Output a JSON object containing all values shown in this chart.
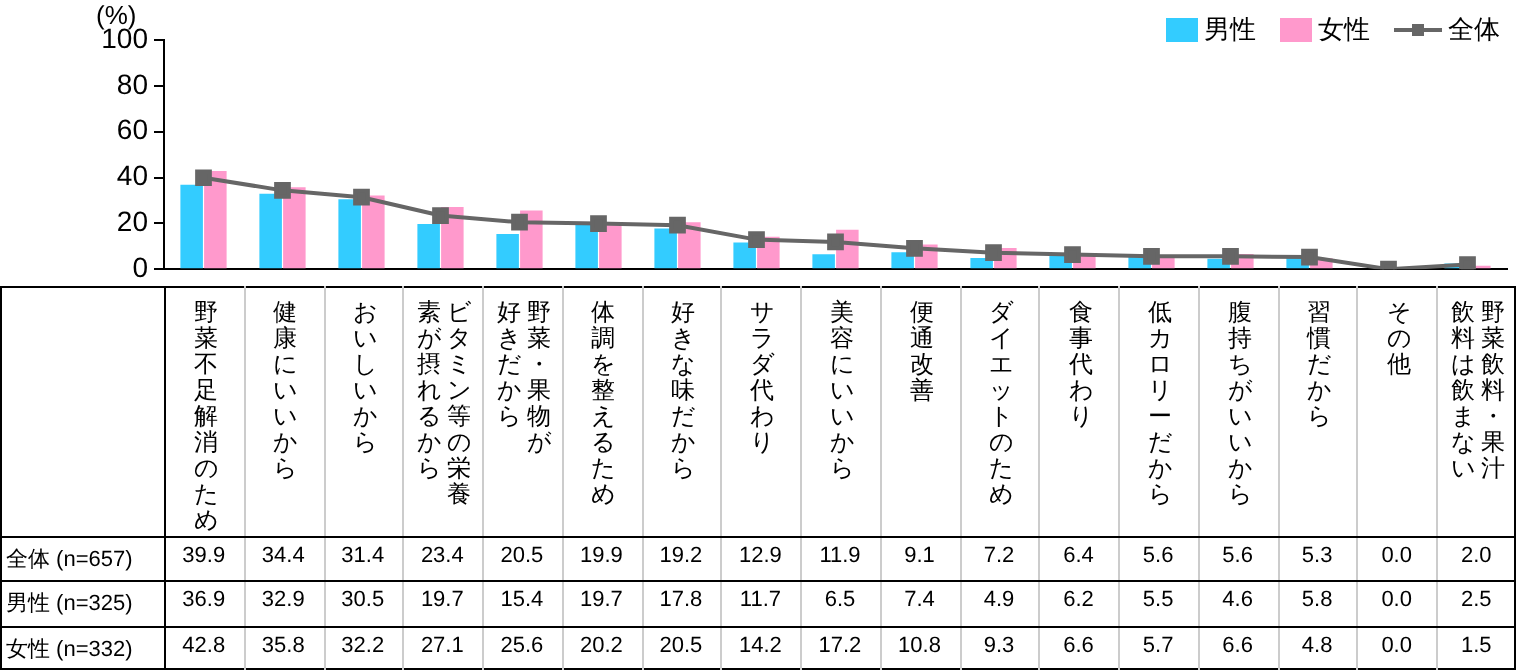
{
  "chart_data": {
    "type": "bar",
    "ylabel": "(%)",
    "categories": [
      "野菜不足解消のため",
      "健康にいいから",
      "おいしいから",
      "ビタミン等の栄養素が摂れるから",
      "野菜・果物が好きだから",
      "体調を整えるため",
      "好きな味だから",
      "サラダ代わり",
      "美容にいいから",
      "便通改善",
      "ダイエットのため",
      "食事代わり",
      "低カロリーだから",
      "腹持ちがいいから",
      "習慣だから",
      "その他",
      "野菜飲料・果汁飲料は飲まない"
    ],
    "series": [
      {
        "name": "全体",
        "type": "line",
        "color": "#666666",
        "values": [
          39.9,
          34.4,
          31.4,
          23.4,
          20.5,
          19.9,
          19.2,
          12.9,
          11.9,
          9.1,
          7.2,
          6.4,
          5.6,
          5.6,
          5.3,
          0.0,
          2.0
        ],
        "value_labels": [
          "39.9",
          "34.4",
          "31.4",
          "23.4",
          "20.5",
          "19.9",
          "19.2",
          "12.9",
          "11.9",
          "9.1",
          "7.2",
          "6.4",
          "5.6",
          "5.6",
          "5.3",
          "0.0",
          "2.0"
        ]
      },
      {
        "name": "男性",
        "color": "#33ccff",
        "values": [
          36.9,
          32.9,
          30.5,
          19.7,
          15.4,
          19.7,
          17.8,
          11.7,
          6.5,
          7.4,
          4.9,
          6.2,
          5.5,
          4.6,
          5.8,
          0.0,
          2.5
        ],
        "value_labels": [
          "36.9",
          "32.9",
          "30.5",
          "19.7",
          "15.4",
          "19.7",
          "17.8",
          "11.7",
          "6.5",
          "7.4",
          "4.9",
          "6.2",
          "5.5",
          "4.6",
          "5.8",
          "0.0",
          "2.5"
        ]
      },
      {
        "name": "女性",
        "color": "#ff99cc",
        "values": [
          42.8,
          35.8,
          32.2,
          27.1,
          25.6,
          20.2,
          20.5,
          14.2,
          17.2,
          10.8,
          9.3,
          6.6,
          5.7,
          6.6,
          4.8,
          0.0,
          1.5
        ],
        "value_labels": [
          "42.8",
          "35.8",
          "32.2",
          "27.1",
          "25.6",
          "20.2",
          "20.5",
          "14.2",
          "17.2",
          "10.8",
          "9.3",
          "6.6",
          "5.7",
          "6.6",
          "4.8",
          "0.0",
          "1.5"
        ]
      }
    ],
    "annotations": [
      "(n=657)",
      "(n=325)",
      "(n=332)"
    ],
    "ylim": [
      0,
      100
    ],
    "yticks": [
      0,
      20,
      40,
      60,
      80,
      100
    ],
    "grid": false,
    "legend": "top right",
    "marker": "square"
  }
}
